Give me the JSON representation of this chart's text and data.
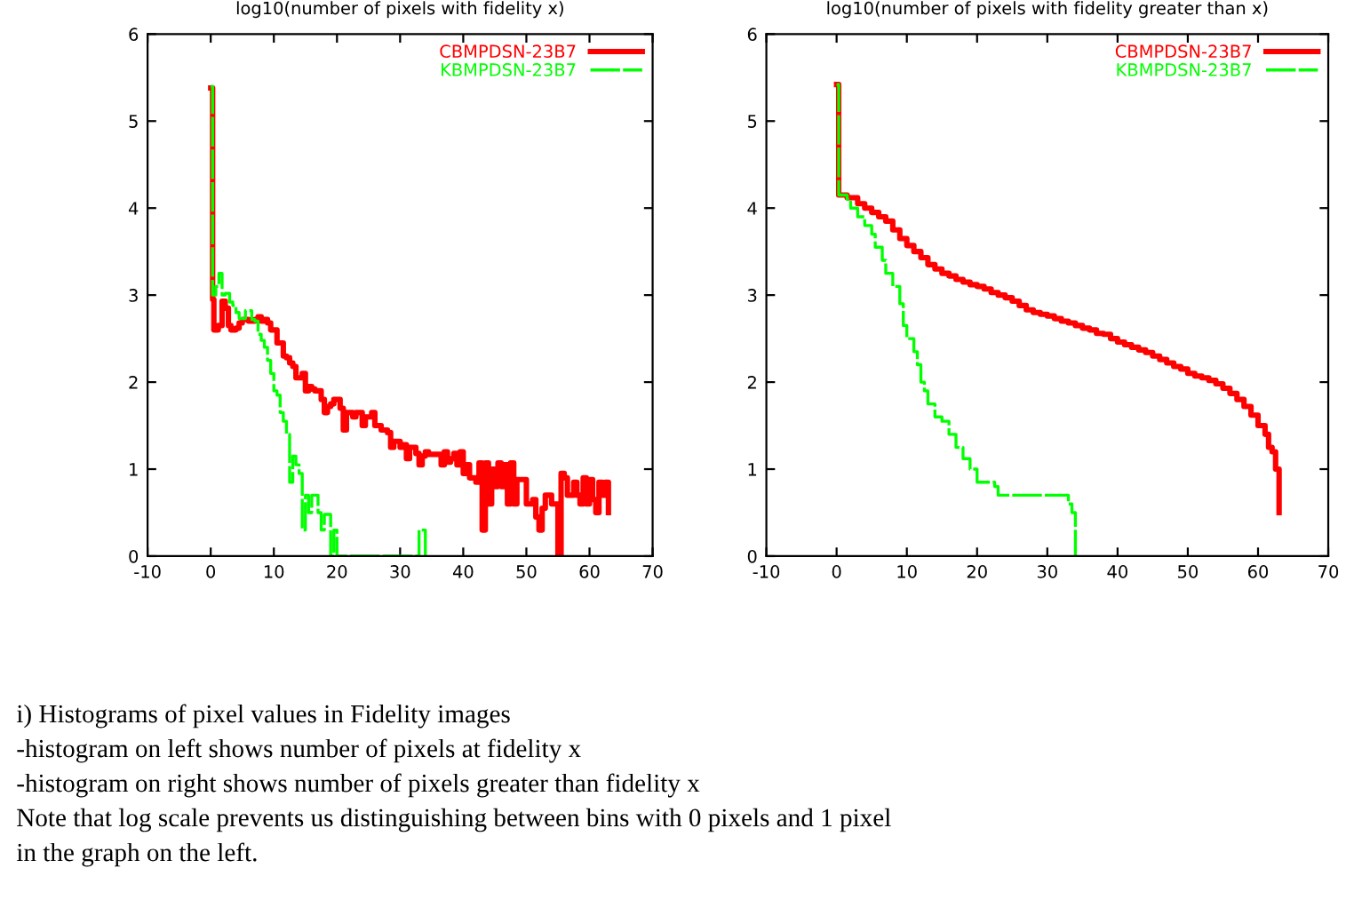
{
  "chart_data": [
    {
      "type": "step",
      "title": "log10(number of pixels with fidelity x)",
      "xlim": [
        -10,
        70
      ],
      "ylim": [
        0,
        6
      ],
      "xticks": [
        -10,
        0,
        10,
        20,
        30,
        40,
        50,
        60,
        70
      ],
      "yticks": [
        0,
        1,
        2,
        3,
        4,
        5,
        6
      ],
      "legend": "top right",
      "series": [
        {
          "name": "CBMPDSN-23B7",
          "color": "#ff0000",
          "line_style": "solid",
          "x": [
            0,
            0.3,
            0.5,
            1.2,
            1.8,
            2.3,
            2.8,
            3.2,
            4,
            4.5,
            5,
            6,
            7,
            7.5,
            8,
            8.5,
            9,
            9.5,
            10.5,
            11.5,
            12,
            12.5,
            13,
            13.5,
            14.5,
            15,
            15.5,
            16,
            16.5,
            17.5,
            18,
            18.5,
            19,
            19.5,
            20.5,
            21,
            21.5,
            22.5,
            23,
            24,
            24.5,
            25.5,
            26,
            27,
            28,
            28.5,
            29,
            30,
            30.5,
            31,
            31.5,
            32.5,
            33,
            33.5,
            34,
            34.5,
            36,
            36.5,
            37,
            37.5,
            38,
            38.5,
            39,
            39.5,
            40,
            40.5,
            41,
            42,
            42.5,
            43,
            43.5,
            44,
            44.5,
            45,
            45.5,
            46,
            46.5,
            47,
            47.5,
            48,
            48.5,
            50,
            51,
            51.5,
            52,
            52.5,
            53,
            54,
            55,
            55.5,
            56,
            56.5,
            57.5,
            58,
            58.5,
            59,
            59.5,
            60,
            60.5,
            61,
            61.5,
            62,
            62.5,
            63
          ],
          "values": [
            5.38,
            2.95,
            2.6,
            2.65,
            2.93,
            2.85,
            2.65,
            2.6,
            2.62,
            2.68,
            2.72,
            2.7,
            2.72,
            2.75,
            2.7,
            2.72,
            2.68,
            2.6,
            2.45,
            2.3,
            2.28,
            2.22,
            2.18,
            2.05,
            2.1,
            1.9,
            1.95,
            1.92,
            1.9,
            1.8,
            1.65,
            1.72,
            1.75,
            1.8,
            1.7,
            1.45,
            1.65,
            1.6,
            1.65,
            1.5,
            1.6,
            1.65,
            1.5,
            1.45,
            1.42,
            1.25,
            1.32,
            1.25,
            1.28,
            1.12,
            1.25,
            1.18,
            1.05,
            1.15,
            1.2,
            1.17,
            1.17,
            1.05,
            1.2,
            1.08,
            1.12,
            1.18,
            1.05,
            1.2,
            0.95,
            1.05,
            0.9,
            0.85,
            1.07,
            0.3,
            1.07,
            0.6,
            1.0,
            0.8,
            1.07,
            0.8,
            1.05,
            0.6,
            1.07,
            0.6,
            0.88,
            0.6,
            0.65,
            0.45,
            0.3,
            0.55,
            0.7,
            0.6,
            0,
            0.95,
            0.9,
            0.7,
            0.85,
            0.7,
            0.6,
            0.9,
            0.6,
            0.88,
            0.65,
            0.5,
            0.85,
            0.7,
            0.85,
            0.5
          ]
        },
        {
          "name": "KBMPDSN-23B7",
          "color": "#00ff00",
          "line_style": "dashed",
          "x": [
            0,
            0.3,
            0.8,
            1.3,
            1.8,
            2.3,
            3,
            3.5,
            4,
            4.5,
            5.5,
            6.5,
            7,
            7.5,
            8,
            8.5,
            9,
            9.5,
            10,
            10.5,
            11,
            11.5,
            12,
            12.5,
            13,
            13.5,
            14,
            14.5,
            15,
            15.5,
            16,
            17,
            17.5,
            18,
            19,
            19.5,
            20,
            33,
            34
          ],
          "values": [
            5.4,
            3.0,
            3.1,
            3.25,
            3.0,
            3.02,
            2.92,
            2.88,
            2.8,
            2.73,
            2.82,
            2.72,
            2.7,
            2.55,
            2.48,
            2.4,
            2.25,
            2.1,
            1.9,
            1.85,
            1.65,
            1.55,
            1.4,
            0.85,
            1.15,
            1.05,
            0.95,
            0.3,
            0.7,
            0.5,
            0.7,
            0.5,
            0.3,
            0.48,
            0,
            0.3,
            0,
            0.3,
            0
          ]
        }
      ],
      "annotations": [
        "i) Histograms of pixel values in Fidelity images",
        "-histogram on left shows number of pixels at fidelity x",
        "-histogram on right shows number of pixels greater than fidelity x",
        "Note that log scale prevents us distinguishing between bins with 0 pixels and 1 pixel",
        "in the graph on the left."
      ]
    },
    {
      "type": "step",
      "title": "log10(number of pixels with fidelity greater than x)",
      "xlim": [
        -10,
        70
      ],
      "ylim": [
        0,
        6
      ],
      "xticks": [
        -10,
        0,
        10,
        20,
        30,
        40,
        50,
        60,
        70
      ],
      "yticks": [
        0,
        1,
        2,
        3,
        4,
        5,
        6
      ],
      "legend": "top right",
      "series": [
        {
          "name": "CBMPDSN-23B7",
          "color": "#ff0000",
          "line_style": "solid",
          "x": [
            0,
            0.3,
            1.5,
            3,
            4,
            5,
            6,
            7,
            8,
            9,
            10,
            11,
            12,
            13,
            14,
            15,
            16,
            17,
            18,
            19,
            20,
            21,
            22,
            23,
            24,
            25,
            26,
            27,
            28,
            29,
            30,
            31,
            32,
            33,
            34,
            35,
            36,
            37,
            38,
            39,
            40,
            41,
            42,
            43,
            44,
            45,
            46,
            47,
            48,
            49,
            50,
            51,
            52,
            53,
            54,
            55,
            56,
            57,
            58,
            59,
            60,
            61,
            61.5,
            62,
            62.5,
            63
          ],
          "values": [
            5.42,
            4.15,
            4.12,
            4.05,
            4.0,
            3.95,
            3.9,
            3.85,
            3.75,
            3.65,
            3.57,
            3.5,
            3.43,
            3.35,
            3.3,
            3.25,
            3.22,
            3.18,
            3.15,
            3.12,
            3.1,
            3.07,
            3.03,
            3.0,
            2.97,
            2.93,
            2.88,
            2.83,
            2.8,
            2.78,
            2.76,
            2.73,
            2.7,
            2.68,
            2.65,
            2.62,
            2.6,
            2.56,
            2.55,
            2.5,
            2.46,
            2.43,
            2.4,
            2.37,
            2.34,
            2.3,
            2.26,
            2.22,
            2.18,
            2.15,
            2.1,
            2.07,
            2.05,
            2.02,
            1.98,
            1.93,
            1.87,
            1.8,
            1.72,
            1.62,
            1.5,
            1.4,
            1.25,
            1.2,
            1.0,
            0.5
          ]
        },
        {
          "name": "KBMPDSN-23B7",
          "color": "#00ff00",
          "line_style": "dashed",
          "x": [
            0,
            0.3,
            1.5,
            2,
            3,
            4,
            5,
            5.5,
            6.5,
            7,
            8,
            9,
            9.5,
            10,
            11,
            11.5,
            12,
            12.5,
            13,
            14,
            15,
            16,
            17,
            18,
            19,
            20,
            22.5,
            23,
            32.5,
            33,
            33.5,
            34
          ],
          "values": [
            5.42,
            4.15,
            4.1,
            4.0,
            3.9,
            3.8,
            3.7,
            3.55,
            3.4,
            3.25,
            3.1,
            2.9,
            2.65,
            2.5,
            2.35,
            2.2,
            2.0,
            1.9,
            1.75,
            1.6,
            1.55,
            1.4,
            1.25,
            1.12,
            1.0,
            0.85,
            0.8,
            0.7,
            0.7,
            0.6,
            0.5,
            0
          ]
        }
      ]
    }
  ]
}
